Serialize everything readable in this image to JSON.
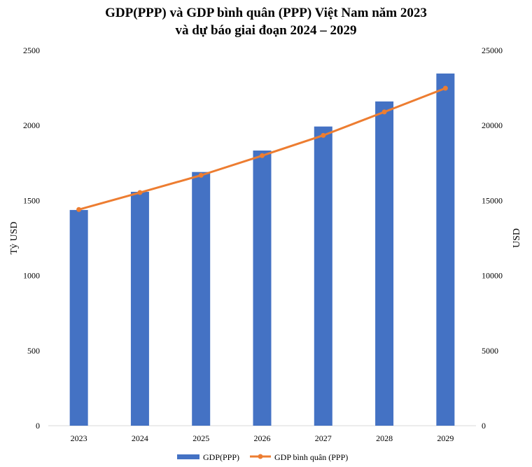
{
  "chart_data": {
    "type": "bar+line",
    "title": "GDP(PPP) và GDP bình quân (PPP) Việt Nam năm 2023",
    "subtitle": "và dự báo giai đoạn 2024 – 2029",
    "categories": [
      "2023",
      "2024",
      "2025",
      "2026",
      "2027",
      "2028",
      "2029"
    ],
    "ylabel_left": "Tỷ USD",
    "ylabel_right": "USD",
    "ylim_left": [
      0,
      2500
    ],
    "ylim_right": [
      0,
      25000
    ],
    "yticks_left": [
      "0",
      "500",
      "1000",
      "1500",
      "2000",
      "2500"
    ],
    "yticks_right": [
      "0",
      "5000",
      "10000",
      "15000",
      "20000",
      "25000"
    ],
    "grid": false,
    "legend_position": "bottom",
    "series": [
      {
        "name": "GDP(PPP)",
        "type": "bar",
        "axis": "left",
        "color": "#4472C4",
        "values": [
          1437,
          1558,
          1690,
          1833,
          1993,
          2160,
          2346
        ]
      },
      {
        "name": "GDP bình quân (PPP)",
        "type": "line",
        "axis": "right",
        "color": "#ED7D31",
        "values": [
          14400,
          15530,
          16680,
          17990,
          19340,
          20900,
          22480
        ]
      }
    ]
  }
}
